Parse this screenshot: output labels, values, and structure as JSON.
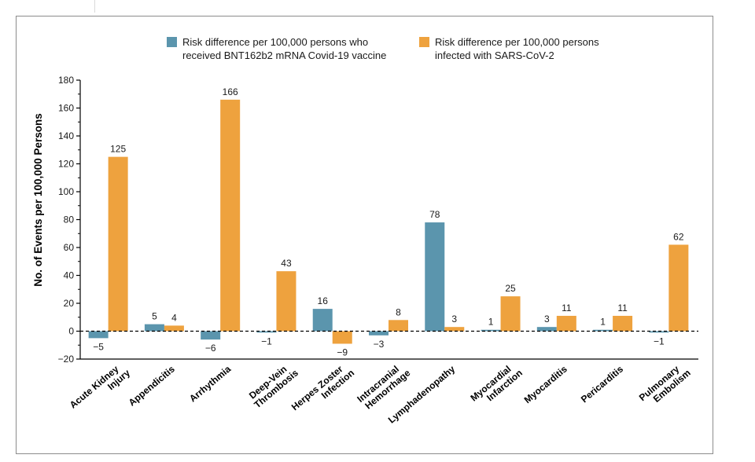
{
  "chart_data": {
    "type": "bar",
    "title": "",
    "xlabel": "",
    "ylabel": "No. of Events per 100,000 Persons",
    "ylim": [
      -20,
      180
    ],
    "yticks": [
      -20,
      0,
      20,
      40,
      60,
      80,
      100,
      120,
      140,
      160,
      180
    ],
    "legend_position": "top",
    "categories": [
      [
        "Acute Kidney",
        "Injury"
      ],
      [
        "Appendicitis"
      ],
      [
        "Arrhythmia"
      ],
      [
        "Deep-Vein",
        "Thrombosis"
      ],
      [
        "Herpes Zoster",
        "Infection"
      ],
      [
        "Intracranial",
        "Hemorrhage"
      ],
      [
        "Lymphadenopathy"
      ],
      [
        "Myocardial",
        "Infarction"
      ],
      [
        "Myocarditis"
      ],
      [
        "Pericarditis"
      ],
      [
        "Pulmonary",
        "Embolism"
      ]
    ],
    "series": [
      {
        "name": [
          "Risk difference per 100,000 persons who",
          "received BNT162b2 mRNA Covid-19 vaccine"
        ],
        "color": "#5b95ad",
        "values": [
          -5,
          5,
          -6,
          -1,
          16,
          -3,
          78,
          1,
          3,
          1,
          -1
        ],
        "labels": [
          "−5",
          "5",
          "−6",
          "−1",
          "16",
          "−3",
          "78",
          "1",
          "3",
          "1",
          "−1"
        ]
      },
      {
        "name": [
          "Risk difference per 100,000 persons",
          "infected with SARS-CoV-2"
        ],
        "color": "#eea23e",
        "values": [
          125,
          4,
          166,
          43,
          -9,
          8,
          3,
          25,
          11,
          11,
          62
        ],
        "labels": [
          "125",
          "4",
          "166",
          "43",
          "−9",
          "8",
          "3",
          "25",
          "11",
          "11",
          "62"
        ]
      }
    ]
  }
}
